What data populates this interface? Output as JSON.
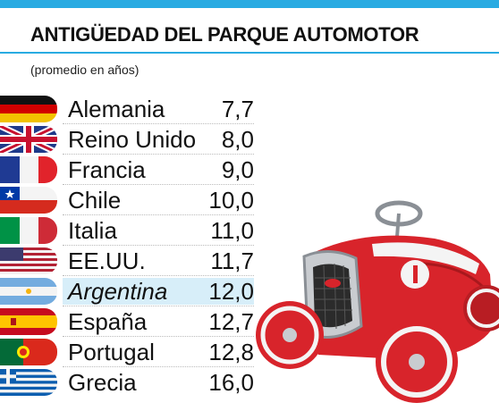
{
  "title": "ANTIGÜEDAD DEL PARQUE AUTOMOTOR",
  "subtitle": "(promedio en años)",
  "colors": {
    "accent": "#29abe2",
    "highlight": "#d7eef9"
  },
  "chart_data": {
    "type": "table",
    "title": "ANTIGÜEDAD DEL PARQUE AUTOMOTOR",
    "subtitle": "(promedio en años)",
    "highlight": "Argentina",
    "categories": [
      "Alemania",
      "Reino Unido",
      "Francia",
      "Chile",
      "Italia",
      "EE.UU.",
      "Argentina",
      "España",
      "Portugal",
      "Grecia"
    ],
    "values": [
      7.7,
      8.0,
      9.0,
      10.0,
      11.0,
      11.7,
      12.0,
      12.7,
      12.8,
      16.0
    ],
    "rows": [
      {
        "country": "Alemania",
        "value": "7,7",
        "flag": "germany-flag"
      },
      {
        "country": "Reino Unido",
        "value": "8,0",
        "flag": "uk-flag"
      },
      {
        "country": "Francia",
        "value": "9,0",
        "flag": "france-flag"
      },
      {
        "country": "Chile",
        "value": "10,0",
        "flag": "chile-flag"
      },
      {
        "country": "Italia",
        "value": "11,0",
        "flag": "italy-flag"
      },
      {
        "country": "EE.UU.",
        "value": "11,7",
        "flag": "usa-flag"
      },
      {
        "country": "Argentina",
        "value": "12,0",
        "flag": "argentina-flag"
      },
      {
        "country": "España",
        "value": "12,7",
        "flag": "spain-flag"
      },
      {
        "country": "Portugal",
        "value": "12,8",
        "flag": "portugal-flag"
      },
      {
        "country": "Grecia",
        "value": "16,0",
        "flag": "greece-flag"
      }
    ]
  }
}
